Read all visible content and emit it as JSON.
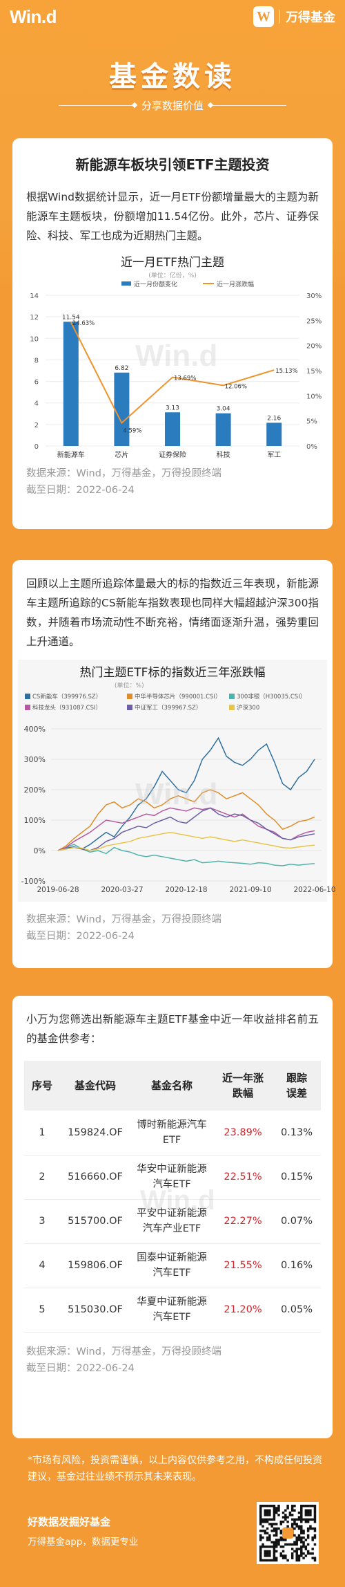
{
  "header": {
    "wind_logo": "Win.d",
    "brand_name": "万得基金",
    "brand_mark": "W"
  },
  "hero": {
    "title": "基金数读",
    "subtitle": "分享数据价值"
  },
  "section1": {
    "title": "新能源车板块引领ETF主题投资",
    "paragraph": "根据Wind数据统计显示，近一月ETF份额增量最大的主题为新能源车主题板块，份额增加11.54亿份。此外，芯片、证券保险、科技、军工也成为近期热门主题。",
    "source": "数据来源：Wind，万得基金，万得投顾终端",
    "date": "截至日期：2022-06-24"
  },
  "chart_data": [
    {
      "type": "bar",
      "title": "近一月ETF热门主题",
      "subtitle": "(单位：亿份，%)",
      "categories": [
        "新能源车",
        "芯片",
        "证券保险",
        "科技",
        "军工"
      ],
      "series": [
        {
          "name": "近一月份额变化",
          "kind": "bar",
          "axis": "left",
          "values": [
            11.54,
            6.82,
            3.13,
            3.04,
            2.16
          ],
          "labels": [
            "11.54",
            "6.82",
            "3.13",
            "3.04",
            "2.16"
          ],
          "color": "#2b7bbf"
        },
        {
          "name": "近一月涨跌幅",
          "kind": "line",
          "axis": "right",
          "values": [
            24.63,
            4.59,
            13.69,
            12.06,
            15.13
          ],
          "labels": [
            "24.63%",
            "4.59%",
            "13.69%",
            "12.06%",
            "15.13%"
          ],
          "color": "#f0932b"
        }
      ],
      "yleft_ticks": [
        "0",
        "2",
        "4",
        "6",
        "8",
        "10",
        "12",
        "14"
      ],
      "yright_ticks": [
        "0%",
        "5%",
        "10%",
        "15%",
        "20%",
        "25%",
        "30%"
      ],
      "ylim_left": [
        0,
        14
      ],
      "ylim_right": [
        0,
        30
      ],
      "legend_position": "top"
    },
    {
      "type": "line",
      "title": "热门主题ETF标的指数近三年涨跌幅",
      "subtitle": "(单位：%)",
      "x_ticks": [
        "2019-06-28",
        "2020-03-27",
        "2020-12-18",
        "2021-09-10",
        "2022-06-10"
      ],
      "y_ticks": [
        "400%",
        "300%",
        "200%",
        "100%",
        "0%",
        "-100%"
      ],
      "ylim": [
        -100,
        400
      ],
      "series": [
        {
          "name": "CS新能车（399976.SZ）",
          "color": "#2f6f9f",
          "values": [
            0,
            8,
            12,
            5,
            20,
            40,
            60,
            45,
            80,
            110,
            150,
            170,
            210,
            260,
            230,
            200,
            190,
            230,
            300,
            330,
            370,
            310,
            290,
            280,
            300,
            330,
            350,
            290,
            220,
            200,
            240,
            260,
            300
          ]
        },
        {
          "name": "中华半导体芯片（990001.CSI）",
          "color": "#e08c2a",
          "values": [
            0,
            15,
            40,
            60,
            80,
            120,
            150,
            160,
            140,
            150,
            170,
            160,
            140,
            150,
            170,
            180,
            170,
            160,
            190,
            200,
            190,
            170,
            180,
            190,
            170,
            150,
            120,
            100,
            70,
            80,
            95,
            100,
            110
          ]
        },
        {
          "name": "300非银（H30035.CSI）",
          "color": "#4fb3a9",
          "values": [
            0,
            10,
            20,
            5,
            -5,
            0,
            -10,
            10,
            0,
            -5,
            -15,
            -20,
            -15,
            -20,
            -25,
            -30,
            -35,
            -30,
            -40,
            -38,
            -35,
            -38,
            -40,
            -42,
            -45,
            -40,
            -42,
            -48,
            -50,
            -45,
            -48,
            -45,
            -43
          ]
        },
        {
          "name": "科技龙头（931087.CSI）",
          "color": "#b55aa0",
          "values": [
            0,
            10,
            30,
            45,
            60,
            80,
            100,
            95,
            90,
            100,
            110,
            120,
            115,
            130,
            140,
            135,
            130,
            140,
            135,
            140,
            130,
            120,
            110,
            120,
            100,
            80,
            70,
            60,
            40,
            35,
            50,
            60,
            65
          ]
        },
        {
          "name": "中证军工（399967.SZ）",
          "color": "#6c5fa6",
          "values": [
            0,
            5,
            10,
            5,
            0,
            10,
            30,
            40,
            60,
            70,
            80,
            75,
            90,
            100,
            110,
            95,
            90,
            110,
            130,
            140,
            120,
            110,
            120,
            115,
            100,
            90,
            70,
            55,
            40,
            35,
            45,
            50,
            55
          ]
        },
        {
          "name": "沪深300",
          "color": "#e8c547",
          "values": [
            0,
            5,
            10,
            8,
            0,
            5,
            15,
            20,
            25,
            30,
            40,
            45,
            50,
            55,
            60,
            55,
            50,
            45,
            40,
            45,
            40,
            35,
            30,
            35,
            30,
            25,
            20,
            15,
            10,
            8,
            12,
            15,
            18
          ]
        }
      ],
      "legend_position": "top"
    }
  ],
  "section2": {
    "paragraph": "回顾以上主题所追踪体量最大的标的指数近三年表现，新能源车主题所追踪的CS新能车指数表现也同样大幅超越沪深300指数，并随着市场流动性不断充裕，情绪面逐渐升温，强势重回上升通道。",
    "source": "数据来源：Wind，万得基金，万得投顾终端",
    "date": "截至日期：2022-06-24"
  },
  "section3": {
    "paragraph": "小万为您筛选出新能源车主题ETF基金中近一年收益排名前五的基金供参考：",
    "columns": [
      "序号",
      "基金代码",
      "基金名称",
      "近一年涨跌幅",
      "跟踪误差"
    ],
    "rows": [
      [
        "1",
        "159824.OF",
        "博时新能源汽车ETF",
        "23.89%",
        "0.13%"
      ],
      [
        "2",
        "516660.OF",
        "华安中证新能源汽车ETF",
        "22.51%",
        "0.15%"
      ],
      [
        "3",
        "515700.OF",
        "平安中证新能源汽车产业ETF",
        "22.27%",
        "0.07%"
      ],
      [
        "4",
        "159806.OF",
        "国泰中证新能源汽车ETF",
        "21.55%",
        "0.16%"
      ],
      [
        "5",
        "515030.OF",
        "华夏中证新能源汽车ETF",
        "21.20%",
        "0.05%"
      ]
    ],
    "source": "数据来源：Wind，万得基金，万得投顾终端",
    "date": "截至日期：2022-06-24"
  },
  "footer": {
    "disclaimer": "*市场有风险，投资需谨慎，以上内容仅供参考之用，不构成任何投资建议，基金过往业绩不预示其未来表现。",
    "slogan": "好数据发掘好基金",
    "app_line": "万得基金app，数据更专业"
  },
  "colors": {
    "background": "#f39a34",
    "bar": "#2b7bbf",
    "line": "#f0932b",
    "rise_text": "#d3242a"
  }
}
